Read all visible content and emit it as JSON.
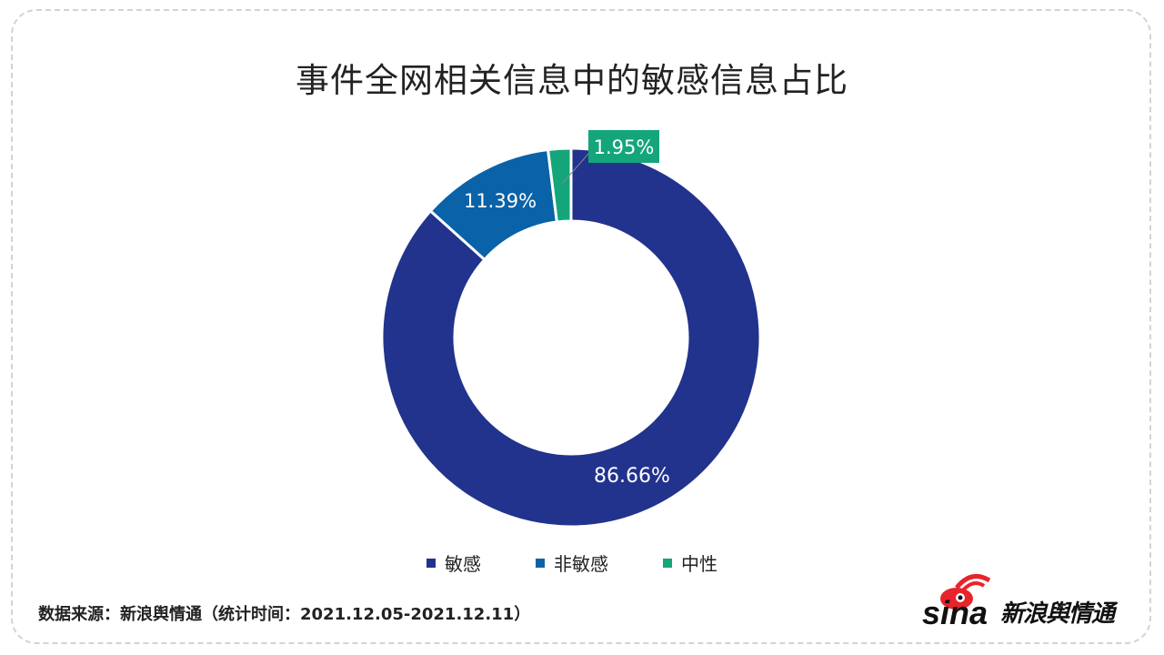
{
  "title": "事件全网相关信息中的敏感信息占比",
  "chart_data": {
    "type": "pie",
    "variant": "donut",
    "categories": [
      "敏感",
      "非敏感",
      "中性"
    ],
    "values": [
      86.66,
      11.39,
      1.95
    ],
    "labels": [
      "86.66%",
      "11.39%",
      "1.95%"
    ],
    "colors": [
      "#21338c",
      "#0a62a8",
      "#14a67a"
    ],
    "legend_position": "bottom"
  },
  "source": "数据来源：新浪舆情通（统计时间：2021.12.05-2021.12.11）",
  "logo": {
    "brand": "sina",
    "product": "新浪舆情通"
  }
}
